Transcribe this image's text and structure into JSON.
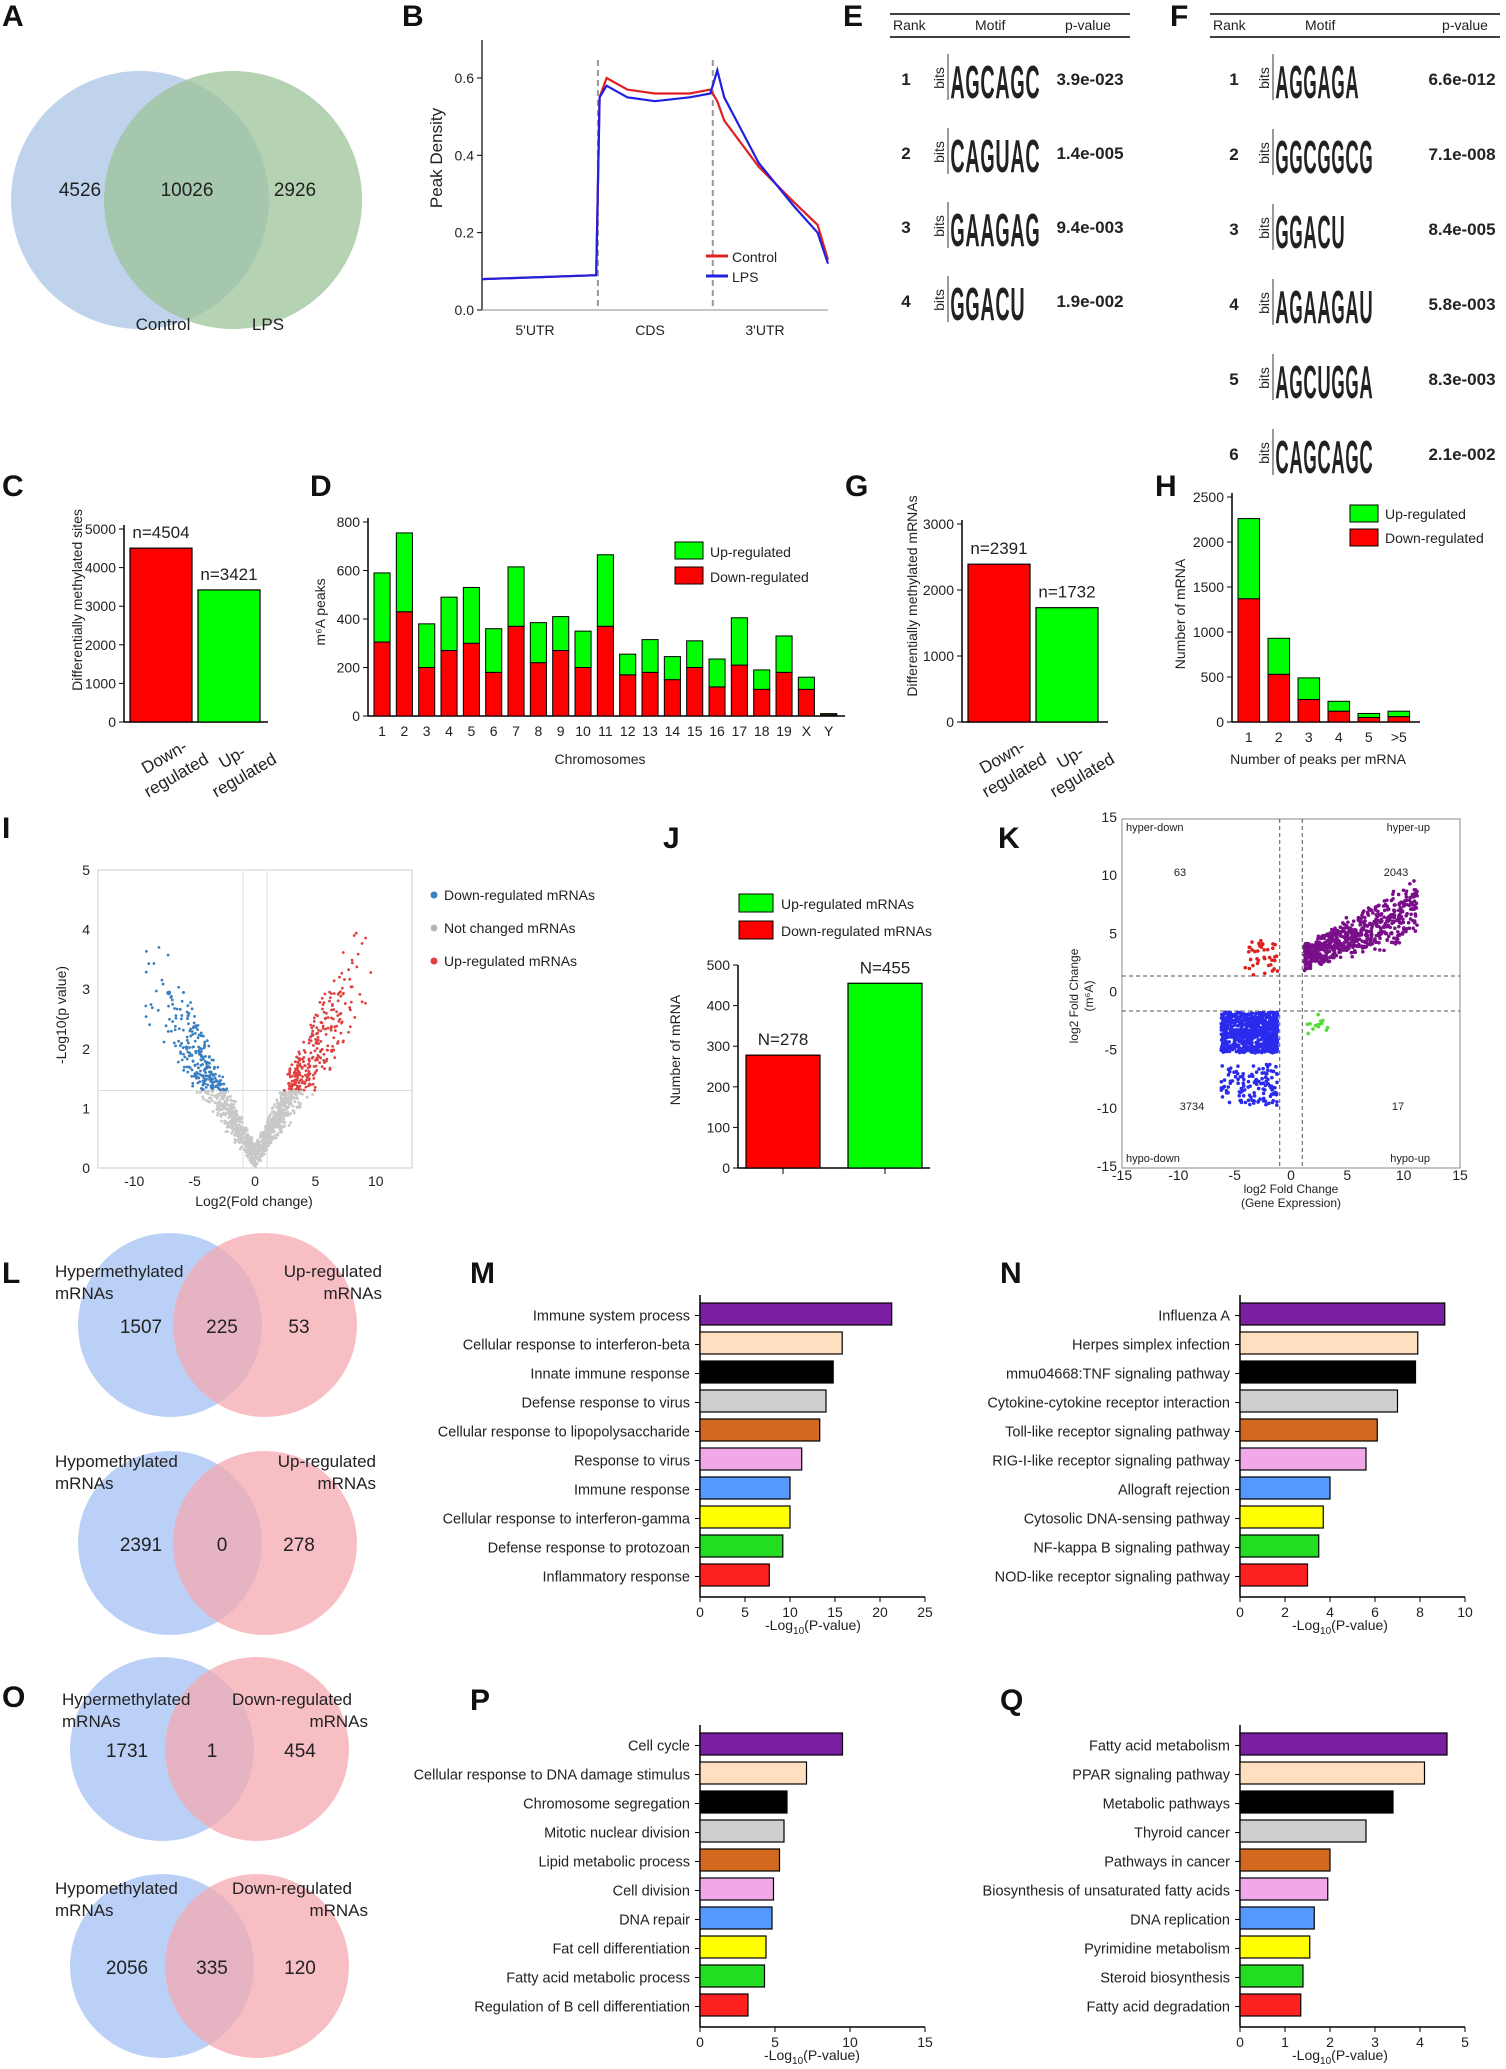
{
  "panels": {
    "A": {
      "label": "A",
      "sets": [
        "Control",
        "LPS"
      ],
      "counts": {
        "left": "4526",
        "both": "10026",
        "right": "2926"
      }
    },
    "B": {
      "label": "B",
      "ylabel": "Peak Density",
      "yticks": [
        "0.0",
        "0.2",
        "0.4",
        "0.6"
      ],
      "regions": [
        "5'UTR",
        "CDS",
        "3'UTR"
      ],
      "legend": [
        "Control",
        "LPS"
      ]
    },
    "C": {
      "label": "C",
      "ylabel": "Differentially methylated sites",
      "yticks": [
        "0",
        "1000",
        "2000",
        "3000",
        "4000",
        "5000"
      ],
      "bars": [
        {
          "cat": "Down-regulated",
          "lines": [
            "Down-",
            "regulated"
          ],
          "value": 4504,
          "n": "n=4504",
          "color": "#ff0000"
        },
        {
          "cat": "Up-regulated",
          "lines": [
            "Up-",
            "regulated"
          ],
          "value": 3421,
          "n": "n=3421",
          "color": "#00ff00"
        }
      ]
    },
    "D": {
      "label": "D",
      "ylabel": "m⁶A peaks",
      "xlabel": "Chromosomes",
      "yticks": [
        "0",
        "200",
        "400",
        "600",
        "800"
      ],
      "legend": [
        "Up-regulated",
        "Down-regulated"
      ]
    },
    "E": {
      "label": "E",
      "header": [
        "Rank",
        "Motif",
        "p-value"
      ],
      "rows": [
        {
          "rank": "1",
          "motif": [
            "A",
            "G",
            "C",
            "A",
            "G",
            "C"
          ],
          "p": "3.9e-023"
        },
        {
          "rank": "2",
          "motif": [
            "C",
            "A",
            "G",
            "U",
            "A",
            "C"
          ],
          "p": "1.4e-005"
        },
        {
          "rank": "3",
          "motif": [
            "G",
            "A",
            "A",
            "G",
            "A",
            "G"
          ],
          "p": "9.4e-003"
        },
        {
          "rank": "4",
          "motif": [
            "G",
            "G",
            "A",
            "C",
            "U"
          ],
          "p": "1.9e-002"
        }
      ]
    },
    "F": {
      "label": "F",
      "header": [
        "Rank",
        "Motif",
        "p-value"
      ],
      "rows": [
        {
          "rank": "1",
          "motif": [
            "A",
            "G",
            "G",
            "A",
            "G",
            "A"
          ],
          "p": "6.6e-012"
        },
        {
          "rank": "2",
          "motif": [
            "G",
            "G",
            "C",
            "G",
            "G",
            "C",
            "G"
          ],
          "p": "7.1e-008"
        },
        {
          "rank": "3",
          "motif": [
            "G",
            "G",
            "A",
            "C",
            "U"
          ],
          "p": "8.4e-005"
        },
        {
          "rank": "4",
          "motif": [
            "A",
            "G",
            "A",
            "A",
            "G",
            "A",
            "U"
          ],
          "p": "5.8e-003"
        },
        {
          "rank": "5",
          "motif": [
            "A",
            "G",
            "C",
            "U",
            "G",
            "G",
            "A"
          ],
          "p": "8.3e-003"
        },
        {
          "rank": "6",
          "motif": [
            "C",
            "A",
            "G",
            "C",
            "A",
            "G",
            "C"
          ],
          "p": "2.1e-002"
        }
      ]
    },
    "G": {
      "label": "G",
      "ylabel": "Differentially methylated mRNAs",
      "yticks": [
        "0",
        "1000",
        "2000",
        "3000"
      ],
      "bars": [
        {
          "cat": "Down-regulated",
          "lines": [
            "Down-",
            "regulated"
          ],
          "value": 2391,
          "n": "n=2391",
          "color": "#ff0000"
        },
        {
          "cat": "Up-regulated",
          "lines": [
            "Up-",
            "regulated"
          ],
          "value": 1732,
          "n": "n=1732",
          "color": "#00ff00"
        }
      ]
    },
    "H": {
      "label": "H",
      "ylabel": "Number of mRNA",
      "xlabel": "Number of peaks per mRNA",
      "yticks": [
        "0",
        "500",
        "1000",
        "1500",
        "2000",
        "2500"
      ],
      "legend": [
        "Up-regulated",
        "Down-regulated"
      ]
    },
    "I": {
      "label": "I",
      "ylabel": "-Log10(p value)",
      "xlabel": "Log2(Fold change)",
      "yticks": [
        "0",
        "1",
        "2",
        "3",
        "4",
        "5"
      ],
      "xticks": [
        "-10",
        "-5",
        "0",
        "5",
        "10"
      ],
      "legend": [
        "Down-regulated mRNAs",
        "Not changed mRNAs",
        "Up-regulated mRNAs"
      ]
    },
    "J": {
      "label": "J",
      "ylabel": "Number of mRNA",
      "yticks": [
        "0",
        "100",
        "200",
        "300",
        "400",
        "500"
      ],
      "legend": [
        "Up-regulated mRNAs",
        "Down-regulated mRNAs"
      ],
      "bars": [
        {
          "value": 278,
          "n": "N=278",
          "color": "#ff0000"
        },
        {
          "value": 455,
          "n": "N=455",
          "color": "#00ff00"
        }
      ]
    },
    "K": {
      "label": "K",
      "xlabel": "log2 Fold Change",
      "xlabel2": "(Gene Expression)",
      "ylabel": "log2 Fold Change",
      "ylabel2": "(m⁶A)",
      "xticks": [
        "-15",
        "-10",
        "-5",
        "0",
        "5",
        "10",
        "15"
      ],
      "yticks": [
        "15",
        "10",
        "5",
        "0",
        "-5",
        "-10",
        "-15"
      ],
      "quadrants": {
        "hyper_down": "hyper-down",
        "hyper_up": "hyper-up",
        "hypo_down": "hypo-down",
        "hypo_up": "hypo-up"
      },
      "counts": {
        "hyper_down": "63",
        "hyper_up": "2043",
        "hypo_down": "3734",
        "hypo_up": "17"
      }
    },
    "L": {
      "label": "L",
      "top": {
        "left_title": [
          "Hypermethylated",
          "mRNAs"
        ],
        "right_title": [
          "Up-regulated",
          "mRNAs"
        ],
        "left": "1507",
        "both": "225",
        "right": "53"
      },
      "bottom": {
        "left_title": [
          "Hypomethylated",
          "mRNAs"
        ],
        "right_title": [
          "Up-regulated",
          "mRNAs"
        ],
        "left": "2391",
        "both": "0",
        "right": "278"
      }
    },
    "M": {
      "label": "M",
      "xlabel": "-Log",
      "xsub": "10",
      "xlabel_tail": "(P-value)",
      "xticks": [
        "0",
        "5",
        "10",
        "15",
        "20",
        "25"
      ]
    },
    "N": {
      "label": "N",
      "xlabel": "-Log",
      "xsub": "10",
      "xlabel_tail": "(P-value)",
      "xticks": [
        "0",
        "2",
        "4",
        "6",
        "8",
        "10"
      ]
    },
    "O": {
      "label": "O",
      "top": {
        "left_title": [
          "Hypermethylated",
          "mRNAs"
        ],
        "right_title": [
          "Down-regulated",
          "mRNAs"
        ],
        "left": "1731",
        "both": "1",
        "right": "454"
      },
      "bottom": {
        "left_title": [
          "Hypomethylated",
          "mRNAs"
        ],
        "right_title": [
          "Down-regulated",
          "mRNAs"
        ],
        "left": "2056",
        "both": "335",
        "right": "120"
      }
    },
    "P": {
      "label": "P",
      "xlabel": "-Log",
      "xsub": "10",
      "xlabel_tail": "(P-value)",
      "xticks": [
        "0",
        "5",
        "10",
        "15"
      ]
    },
    "Q": {
      "label": "Q",
      "xlabel": "-Log",
      "xsub": "10",
      "xlabel_tail": "(P-value)",
      "xticks": [
        "0",
        "1",
        "2",
        "3",
        "4",
        "5"
      ]
    }
  },
  "bar_palette": [
    "#7b1fa2",
    "#ffdfbf",
    "#000000",
    "#cfcfcf",
    "#d2691e",
    "#f0a8e8",
    "#5599ff",
    "#ffff00",
    "#22dd22",
    "#ff2020"
  ],
  "chart_data": [
    {
      "panel": "B",
      "type": "line",
      "title": "",
      "xlabel": "",
      "ylabel": "Peak Density",
      "ylim": [
        0,
        0.65
      ],
      "categories": [
        "5'UTR",
        "CDS",
        "3'UTR"
      ],
      "series": [
        {
          "name": "Control",
          "color": "#e02020",
          "x": [
            0,
            0.33,
            0.34,
            0.36,
            0.42,
            0.5,
            0.6,
            0.66,
            0.68,
            0.7,
            0.8,
            0.9,
            0.97,
            1.0
          ],
          "values": [
            0.08,
            0.09,
            0.55,
            0.6,
            0.57,
            0.56,
            0.56,
            0.57,
            0.54,
            0.49,
            0.37,
            0.28,
            0.22,
            0.13
          ]
        },
        {
          "name": "LPS",
          "color": "#2020e0",
          "x": [
            0,
            0.33,
            0.34,
            0.36,
            0.42,
            0.5,
            0.6,
            0.66,
            0.68,
            0.7,
            0.8,
            0.9,
            0.97,
            1.0
          ],
          "values": [
            0.08,
            0.09,
            0.55,
            0.58,
            0.55,
            0.54,
            0.55,
            0.56,
            0.62,
            0.55,
            0.38,
            0.27,
            0.2,
            0.12
          ]
        }
      ]
    },
    {
      "panel": "C",
      "type": "bar",
      "title": "",
      "ylabel": "Differentially methylated sites",
      "ylim": [
        0,
        5000
      ],
      "categories": [
        "Down-regulated",
        "Up-regulated"
      ],
      "values": [
        4504,
        3421
      ]
    },
    {
      "panel": "D",
      "type": "bar",
      "stacked": true,
      "xlabel": "Chromosomes",
      "ylabel": "m6A peaks",
      "ylim": [
        0,
        800
      ],
      "categories": [
        "1",
        "2",
        "3",
        "4",
        "5",
        "6",
        "7",
        "8",
        "9",
        "10",
        "11",
        "12",
        "13",
        "14",
        "15",
        "16",
        "17",
        "18",
        "19",
        "X",
        "Y"
      ],
      "series": [
        {
          "name": "Down-regulated",
          "color": "#ff0000",
          "values": [
            305,
            430,
            200,
            270,
            300,
            180,
            370,
            220,
            270,
            200,
            370,
            170,
            180,
            150,
            200,
            120,
            210,
            110,
            180,
            110,
            5
          ]
        },
        {
          "name": "Up-regulated",
          "color": "#00ff00",
          "values": [
            285,
            325,
            180,
            220,
            230,
            180,
            245,
            165,
            140,
            150,
            295,
            85,
            135,
            95,
            110,
            115,
            195,
            80,
            150,
            50,
            5
          ]
        }
      ]
    },
    {
      "panel": "G",
      "type": "bar",
      "ylabel": "Differentially methylated mRNAs",
      "ylim": [
        0,
        3000
      ],
      "categories": [
        "Down-regulated",
        "Up-regulated"
      ],
      "values": [
        2391,
        1732
      ]
    },
    {
      "panel": "H",
      "type": "bar",
      "stacked": true,
      "xlabel": "Number of peaks per mRNA",
      "ylabel": "Number of mRNA",
      "ylim": [
        0,
        2500
      ],
      "categories": [
        "1",
        "2",
        "3",
        "4",
        "5",
        ">5"
      ],
      "series": [
        {
          "name": "Down-regulated",
          "color": "#ff0000",
          "values": [
            1370,
            530,
            250,
            120,
            50,
            60
          ]
        },
        {
          "name": "Up-regulated",
          "color": "#00ff00",
          "values": [
            890,
            400,
            240,
            110,
            45,
            60
          ]
        }
      ]
    },
    {
      "panel": "I",
      "type": "scatter",
      "xlabel": "Log2(Fold change)",
      "ylabel": "-Log10(p value)",
      "xlim": [
        -13,
        13
      ],
      "ylim": [
        0,
        5
      ],
      "series": [
        {
          "name": "Down-regulated mRNAs",
          "color": "#3a7fc0"
        },
        {
          "name": "Not changed mRNAs",
          "color": "#b8b8b8"
        },
        {
          "name": "Up-regulated mRNAs",
          "color": "#e04040"
        }
      ]
    },
    {
      "panel": "J",
      "type": "bar",
      "ylabel": "Number of mRNA",
      "ylim": [
        0,
        500
      ],
      "categories": [
        "Down-regulated mRNAs",
        "Up-regulated mRNAs"
      ],
      "values": [
        278,
        455
      ]
    },
    {
      "panel": "K",
      "type": "scatter",
      "xlabel": "log2 Fold Change (Gene Expression)",
      "ylabel": "log2 Fold Change (m6A)",
      "xlim": [
        -15,
        15
      ],
      "ylim": [
        -15,
        15
      ],
      "series": [
        {
          "name": "hyper-up",
          "color": "#7a0f8a",
          "count": 2043
        },
        {
          "name": "hypo-down",
          "color": "#2b2bee",
          "count": 3734
        },
        {
          "name": "hyper-down",
          "color": "#e02020",
          "count": 63
        },
        {
          "name": "hypo-up",
          "color": "#55dd33",
          "count": 17
        }
      ]
    },
    {
      "panel": "M",
      "type": "bar",
      "orientation": "horizontal",
      "xlabel": "-Log10(P-value)",
      "xlim": [
        0,
        25
      ],
      "categories": [
        "Immune system process",
        "Cellular response to interferon-beta",
        "Innate immune response",
        "Defense response to virus",
        "Cellular response to lipopolysaccharide",
        "Response to virus",
        "Immune response",
        "Cellular response to interferon-gamma",
        "Defense response to protozoan",
        "Inflammatory response"
      ],
      "values": [
        21.3,
        15.8,
        14.8,
        14.0,
        13.3,
        11.3,
        10.0,
        10.0,
        9.2,
        7.7
      ]
    },
    {
      "panel": "N",
      "type": "bar",
      "orientation": "horizontal",
      "xlabel": "-Log10(P-value)",
      "xlim": [
        0,
        10
      ],
      "categories": [
        "Influenza A",
        "Herpes simplex infection",
        "mmu04668:TNF signaling pathway",
        "Cytokine-cytokine receptor interaction",
        "Toll-like receptor signaling pathway",
        "RIG-I-like receptor signaling pathway",
        "Allograft rejection",
        "Cytosolic DNA-sensing pathway",
        "NF-kappa B signaling pathway",
        "NOD-like receptor signaling pathway"
      ],
      "values": [
        9.1,
        7.9,
        7.8,
        7.0,
        6.1,
        5.6,
        4.0,
        3.7,
        3.5,
        3.0
      ]
    },
    {
      "panel": "P",
      "type": "bar",
      "orientation": "horizontal",
      "xlabel": "-Log10(P-value)",
      "xlim": [
        0,
        15
      ],
      "categories": [
        "Cell cycle",
        "Cellular response to DNA damage stimulus",
        "Chromosome segregation",
        "Mitotic nuclear division",
        "Lipid metabolic process",
        "Cell division",
        "DNA repair",
        "Fat cell differentiation",
        "Fatty acid metabolic process",
        "Regulation of B cell differentiation"
      ],
      "values": [
        9.5,
        7.1,
        5.8,
        5.6,
        5.3,
        4.9,
        4.8,
        4.4,
        4.3,
        3.2
      ]
    },
    {
      "panel": "Q",
      "type": "bar",
      "orientation": "horizontal",
      "xlabel": "-Log10(P-value)",
      "xlim": [
        0,
        5
      ],
      "categories": [
        "Fatty acid metabolism",
        "PPAR signaling pathway",
        "Metabolic pathways",
        "Thyroid cancer",
        "Pathways in cancer",
        "Biosynthesis of unsaturated fatty acids",
        "DNA replication",
        "Pyrimidine metabolism",
        "Steroid biosynthesis",
        "Fatty acid degradation"
      ],
      "values": [
        4.6,
        4.1,
        3.4,
        2.8,
        2.0,
        1.95,
        1.65,
        1.55,
        1.4,
        1.35
      ]
    }
  ]
}
